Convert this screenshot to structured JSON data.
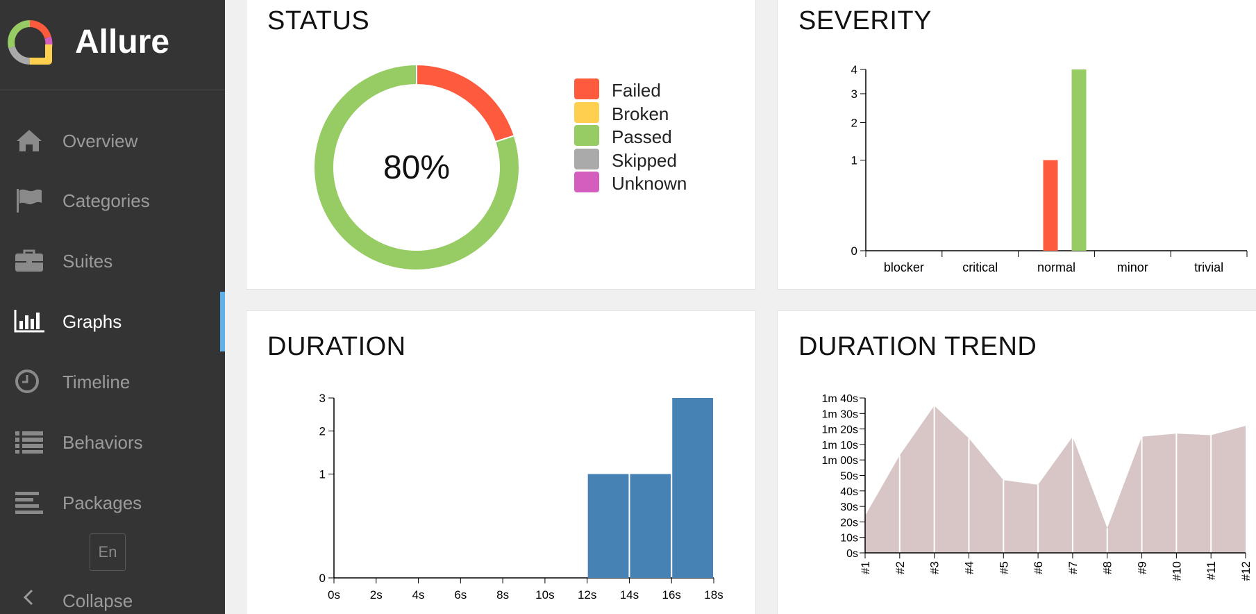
{
  "sidebar": {
    "brand": "Allure",
    "items": [
      {
        "id": "overview",
        "label": "Overview",
        "icon": "home-icon",
        "active": false
      },
      {
        "id": "categories",
        "label": "Categories",
        "icon": "flag-icon",
        "active": false
      },
      {
        "id": "suites",
        "label": "Suites",
        "icon": "briefcase-icon",
        "active": false
      },
      {
        "id": "graphs",
        "label": "Graphs",
        "icon": "bar-chart-icon",
        "active": true
      },
      {
        "id": "timeline",
        "label": "Timeline",
        "icon": "clock-icon",
        "active": false
      },
      {
        "id": "behaviors",
        "label": "Behaviors",
        "icon": "list-icon",
        "active": false
      },
      {
        "id": "packages",
        "label": "Packages",
        "icon": "align-left-icon",
        "active": false
      }
    ],
    "language": "En",
    "collapse_label": "Collapse"
  },
  "colors": {
    "failed": "#fd5a3e",
    "broken": "#ffd050",
    "passed": "#97cc64",
    "skipped": "#aaaaaa",
    "unknown": "#d35ebe",
    "duration_bar": "#4682b4",
    "trend_area": "#d8c6c6",
    "active_indicator": "#5fb0e8"
  },
  "status": {
    "title": "STATUS",
    "center_label": "80%",
    "legend": [
      {
        "key": "failed",
        "label": "Failed"
      },
      {
        "key": "broken",
        "label": "Broken"
      },
      {
        "key": "passed",
        "label": "Passed"
      },
      {
        "key": "skipped",
        "label": "Skipped"
      },
      {
        "key": "unknown",
        "label": "Unknown"
      }
    ]
  },
  "severity": {
    "title": "SEVERITY"
  },
  "duration": {
    "title": "DURATION"
  },
  "trend": {
    "title": "DURATION TREND"
  },
  "chart_data": [
    {
      "id": "status",
      "type": "pie",
      "title": "STATUS",
      "slices": [
        {
          "name": "Failed",
          "value": 1,
          "key": "failed"
        },
        {
          "name": "Passed",
          "value": 4,
          "key": "passed"
        }
      ],
      "center_label": "80%",
      "legend_position": "right"
    },
    {
      "id": "severity",
      "type": "bar",
      "title": "SEVERITY",
      "categories": [
        "blocker",
        "critical",
        "normal",
        "minor",
        "trivial"
      ],
      "series": [
        {
          "name": "Failed",
          "key": "failed",
          "values": [
            0,
            0,
            1,
            0,
            0
          ]
        },
        {
          "name": "Passed",
          "key": "passed",
          "values": [
            0,
            0,
            4,
            0,
            0
          ]
        }
      ],
      "yticks": [
        0,
        1,
        2,
        3,
        4
      ],
      "ylim": [
        0,
        4
      ],
      "yscale": "sqrt"
    },
    {
      "id": "duration",
      "type": "bar",
      "title": "DURATION",
      "x_ticks": [
        "0s",
        "2s",
        "4s",
        "6s",
        "8s",
        "10s",
        "12s",
        "14s",
        "16s",
        "18s"
      ],
      "bins": [
        {
          "from": 12,
          "to": 14,
          "value": 1
        },
        {
          "from": 14,
          "to": 16,
          "value": 1
        },
        {
          "from": 16,
          "to": 18,
          "value": 3
        }
      ],
      "xlim": [
        0,
        18
      ],
      "yticks": [
        0,
        1,
        2,
        3
      ],
      "ylim": [
        0,
        3
      ],
      "yscale": "sqrt"
    },
    {
      "id": "trend",
      "type": "area",
      "title": "DURATION TREND",
      "categories": [
        "#1",
        "#2",
        "#3",
        "#4",
        "#5",
        "#6",
        "#7",
        "#8",
        "#9",
        "#10",
        "#11",
        "#12"
      ],
      "values_seconds": [
        24,
        63,
        95,
        74,
        47,
        44,
        75,
        16,
        75,
        77,
        76,
        82
      ],
      "yticks": [
        "0s",
        "10s",
        "20s",
        "30s",
        "40s",
        "50s",
        "1m 00s",
        "1m 10s",
        "1m 20s",
        "1m 30s",
        "1m 40s"
      ],
      "ylim_seconds": [
        0,
        100
      ]
    }
  ]
}
